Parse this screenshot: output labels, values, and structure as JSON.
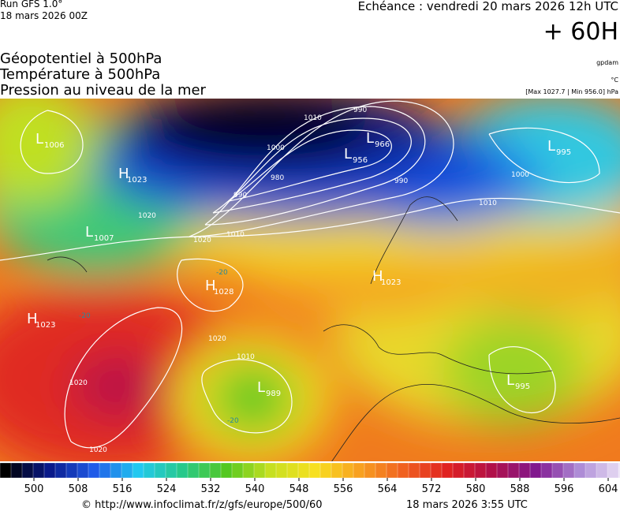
{
  "header": {
    "run": "Run GFS 1.0°",
    "run_date": "18 mars 2026 00Z",
    "echeance": "Echéance : vendredi 20 mars 2026 12h UTC",
    "lead": "+ 60H"
  },
  "titles": [
    "Géopotentiel à 500hPa",
    "Température à 500hPa",
    "Pression au niveau de la mer"
  ],
  "units": {
    "geopotential": "gpdam",
    "temperature": "°C",
    "pressure": "[Max 1027.7 | Min 956.0] hPa"
  },
  "pressure_centers": [
    {
      "type": "L",
      "value": 1006
    },
    {
      "type": "H",
      "value": 1023
    },
    {
      "type": "L",
      "value": 1007
    },
    {
      "type": "H",
      "value": 1028
    },
    {
      "type": "H",
      "value": 1023
    },
    {
      "type": "L",
      "value": 966
    },
    {
      "type": "L",
      "value": 956
    },
    {
      "type": "L",
      "value": 995
    },
    {
      "type": "H",
      "value": 1023
    },
    {
      "type": "L",
      "value": 989
    },
    {
      "type": "L",
      "value": 995
    }
  ],
  "isobar_labels": [
    990,
    1010,
    1000,
    980,
    990,
    990,
    1010,
    1020,
    1020,
    1000,
    1010,
    1020,
    1010,
    1020,
    1020
  ],
  "temperature_labels": [
    -20,
    -20,
    -20
  ],
  "colorbar": {
    "ticks": [
      500,
      508,
      516,
      524,
      532,
      540,
      548,
      556,
      564,
      572,
      580,
      588,
      596,
      604
    ],
    "colors": [
      "#000000",
      "#0a1a8a",
      "#1f5ae8",
      "#22c9f0",
      "#27c98a",
      "#55c820",
      "#c8e020",
      "#f8e020",
      "#f8a020",
      "#f06020",
      "#e02020",
      "#b0104a",
      "#801890",
      "#b090d8",
      "#f0e8f8"
    ]
  },
  "footer": {
    "url": "© http://www.infoclimat.fr/z/gfs/europe/500/60",
    "date": "18 mars 2026  3:55 UTC"
  }
}
